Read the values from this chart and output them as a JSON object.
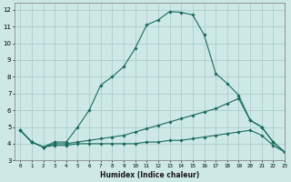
{
  "xlabel": "Humidex (Indice chaleur)",
  "xlim": [
    -0.5,
    23
  ],
  "ylim": [
    3,
    12.4
  ],
  "yticks": [
    3,
    4,
    5,
    6,
    7,
    8,
    9,
    10,
    11,
    12
  ],
  "xticks": [
    0,
    1,
    2,
    3,
    4,
    5,
    6,
    7,
    8,
    9,
    10,
    11,
    12,
    13,
    14,
    15,
    16,
    17,
    18,
    19,
    20,
    21,
    22,
    23
  ],
  "bg_color": "#cde8e5",
  "grid_color": "#aacfcc",
  "line_color": "#1a6b5e",
  "lines": [
    {
      "x": [
        0,
        1,
        2,
        3,
        4,
        5,
        6,
        7,
        8,
        9,
        10,
        11,
        12,
        13,
        14,
        15,
        16,
        17,
        18,
        19,
        20,
        21,
        22,
        23
      ],
      "y": [
        4.8,
        4.1,
        3.8,
        4.1,
        4.1,
        5.0,
        6.0,
        7.5,
        8.0,
        8.6,
        9.7,
        11.1,
        11.4,
        11.9,
        11.85,
        11.7,
        10.5,
        8.2,
        7.6,
        6.9,
        5.4,
        5.0,
        4.1,
        3.5
      ]
    },
    {
      "x": [
        0,
        1,
        2,
        3,
        4,
        5,
        6,
        7,
        8,
        9,
        10,
        11,
        12,
        13,
        14,
        15,
        16,
        17,
        18,
        19,
        20,
        21,
        22,
        23
      ],
      "y": [
        4.8,
        4.1,
        3.8,
        4.0,
        4.0,
        4.1,
        4.2,
        4.3,
        4.4,
        4.5,
        4.7,
        4.9,
        5.1,
        5.3,
        5.5,
        5.7,
        5.9,
        6.1,
        6.4,
        6.7,
        5.4,
        5.0,
        4.1,
        3.5
      ]
    },
    {
      "x": [
        0,
        1,
        2,
        3,
        4,
        5,
        6,
        7,
        8,
        9,
        10,
        11,
        12,
        13,
        14,
        15,
        16,
        17,
        18,
        19,
        20,
        21,
        22,
        23
      ],
      "y": [
        4.8,
        4.1,
        3.8,
        3.9,
        3.9,
        4.0,
        4.0,
        4.0,
        4.0,
        4.0,
        4.0,
        4.1,
        4.1,
        4.2,
        4.2,
        4.3,
        4.4,
        4.5,
        4.6,
        4.7,
        4.8,
        4.5,
        3.9,
        3.5
      ]
    }
  ]
}
